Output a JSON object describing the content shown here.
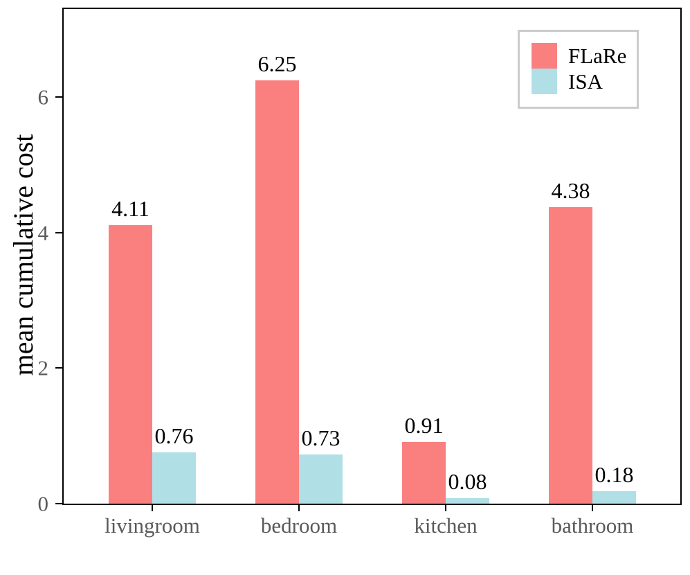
{
  "chart_data": {
    "type": "bar",
    "title": "",
    "xlabel": "",
    "ylabel": "mean cumulative cost",
    "categories": [
      "livingroom",
      "bedroom",
      "kitchen",
      "bathroom"
    ],
    "series": [
      {
        "name": "FLaRe",
        "color": "#FA8080",
        "values": [
          4.11,
          6.25,
          0.91,
          4.38
        ]
      },
      {
        "name": "ISA",
        "color": "#B0E0E6",
        "values": [
          0.76,
          0.73,
          0.08,
          0.18
        ]
      }
    ],
    "value_labels": [
      [
        "4.11",
        "6.25",
        "0.91",
        "4.38"
      ],
      [
        "0.76",
        "0.73",
        "0.08",
        "0.18"
      ]
    ],
    "yticks": [
      "0",
      "2",
      "4",
      "6"
    ],
    "ylim": [
      0,
      7.3
    ],
    "grid": false,
    "legend_position": "upper right",
    "axis_color": "#000000",
    "tick_label_color": "#5a5a5a",
    "value_label_color": "#000000",
    "legend_border_color": "#cccccc"
  }
}
